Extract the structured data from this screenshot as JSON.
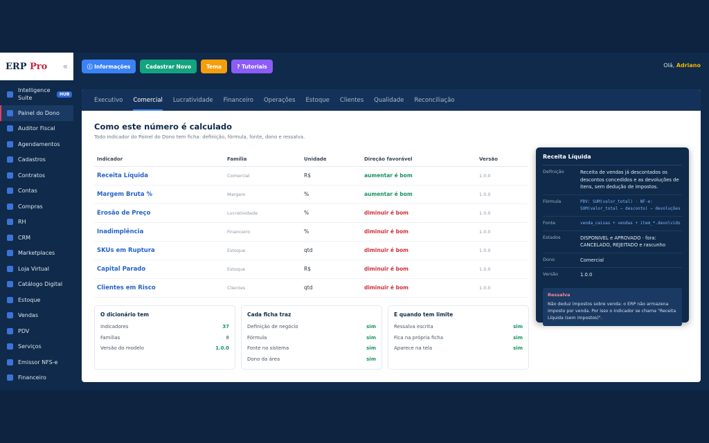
{
  "app": {
    "logo_main": "ERP",
    "logo_accent": "Pro",
    "collapse_icon": "«"
  },
  "sidebar": {
    "items": [
      {
        "label": "Intelligence Suite",
        "badge": "HUB"
      },
      {
        "label": "Painel do Dono",
        "active": true
      },
      {
        "label": "Auditor Fiscal"
      },
      {
        "label": "Agendamentos"
      },
      {
        "label": "Cadastros"
      },
      {
        "label": "Contratos"
      },
      {
        "label": "Contas"
      },
      {
        "label": "Compras"
      },
      {
        "label": "RH"
      },
      {
        "label": "CRM"
      },
      {
        "label": "Marketplaces"
      },
      {
        "label": "Loja Virtual"
      },
      {
        "label": "Catálogo Digital"
      },
      {
        "label": "Estoque"
      },
      {
        "label": "Vendas"
      },
      {
        "label": "PDV"
      },
      {
        "label": "Serviços"
      },
      {
        "label": "Emissor NFS-e"
      },
      {
        "label": "Financeiro"
      }
    ]
  },
  "topbar": {
    "info_label": "ⓘ Informações",
    "new_label": "Cadastrar Novo",
    "theme_label": "Tema",
    "tutorials_label": "? Tutoriais",
    "greeting_prefix": "Olá,",
    "user_name": "Adriano"
  },
  "tabs": [
    "Executivo",
    "Comercial",
    "Lucratividade",
    "Financeiro",
    "Operações",
    "Estoque",
    "Clientes",
    "Qualidade",
    "Reconciliação"
  ],
  "active_tab": "Comercial",
  "main": {
    "title": "Como este número é calculado",
    "subtitle": "Todo indicador do Painel do Dono tem ficha: definição, fórmula, fonte, dono e ressalva."
  },
  "table": {
    "headers": [
      "Indicador",
      "Família",
      "Unidade",
      "Direção favorável",
      "Versão"
    ],
    "rows": [
      {
        "ind": "Receita Líquida",
        "fam": "Comercial",
        "unit": "R$",
        "dir": "aumentar é bom",
        "ver": "1.0.0"
      },
      {
        "ind": "Margem Bruta %",
        "fam": "Margem",
        "unit": "%",
        "dir": "aumentar é bom",
        "ver": "1.0.0"
      },
      {
        "ind": "Erosão de Preço",
        "fam": "Lucratividade",
        "unit": "%",
        "dir": "diminuir é bom",
        "ver": "1.0.0"
      },
      {
        "ind": "Inadimplência",
        "fam": "Financeiro",
        "unit": "%",
        "dir": "diminuir é bom",
        "ver": "1.0.0"
      },
      {
        "ind": "SKUs em Ruptura",
        "fam": "Estoque",
        "unit": "qtd",
        "dir": "diminuir é bom",
        "ver": "1.0.0"
      },
      {
        "ind": "Capital Parado",
        "fam": "Estoque",
        "unit": "R$",
        "dir": "diminuir é bom",
        "ver": "1.0.0"
      },
      {
        "ind": "Clientes em Risco",
        "fam": "Clientes",
        "unit": "qtd",
        "dir": "diminuir é bom",
        "ver": "1.0.0"
      }
    ]
  },
  "boxes": [
    {
      "title": "O dicionário tem",
      "rows": [
        {
          "k": "Indicadores",
          "v": "37"
        },
        {
          "k": "Famílias",
          "v": "8"
        },
        {
          "k": "Versão do modelo",
          "v": "1.0.0"
        }
      ]
    },
    {
      "title": "Cada ficha traz",
      "rows": [
        {
          "k": "Definição de negócio",
          "v": "sim"
        },
        {
          "k": "Fórmula",
          "v": "sim"
        },
        {
          "k": "Fonte no sistema",
          "v": "sim"
        },
        {
          "k": "Dono da área",
          "v": "sim"
        }
      ]
    },
    {
      "title": "E quando tem limite",
      "rows": [
        {
          "k": "Ressalva escrita",
          "v": "sim"
        },
        {
          "k": "Fica na própria ficha",
          "v": "sim"
        },
        {
          "k": "Aparece na tela",
          "v": "sim"
        }
      ]
    }
  ],
  "popover": {
    "title": "Receita Líquida",
    "definicao_k": "Definição",
    "definicao_v": "Receita de vendas já descontados os descontos concedidos e as devoluções de itens, sem dedução de impostos.",
    "formula_k": "Fórmula",
    "formula_v": "PDV: SUM(valor_total) · NF-e: SUM(valor_total − desconto) − devoluções",
    "fonte_k": "Fonte",
    "fonte_v": "venda_caixas + vendas + item_*.devolvido",
    "estados_k": "Estados",
    "estados_v": "DISPONIVEL e APROVADO · fora: CANCELADO, REJEITADO e rascunho",
    "dono_k": "Dono",
    "dono_v": "Comercial",
    "versao_k": "Versão",
    "versao_v": "1.0.0",
    "ressalva_title": "Ressalva",
    "ressalva_text": "Não deduz impostos sobre venda: o ERP não armazena imposto por venda. Por isso o indicador se chama \"Receita Líquida (sem impostos)\"."
  },
  "colors": {
    "accent": "#3b82f6",
    "positive": "#15935f",
    "negative": "#d22e3a",
    "nav_bg": "#0f2a4a"
  }
}
